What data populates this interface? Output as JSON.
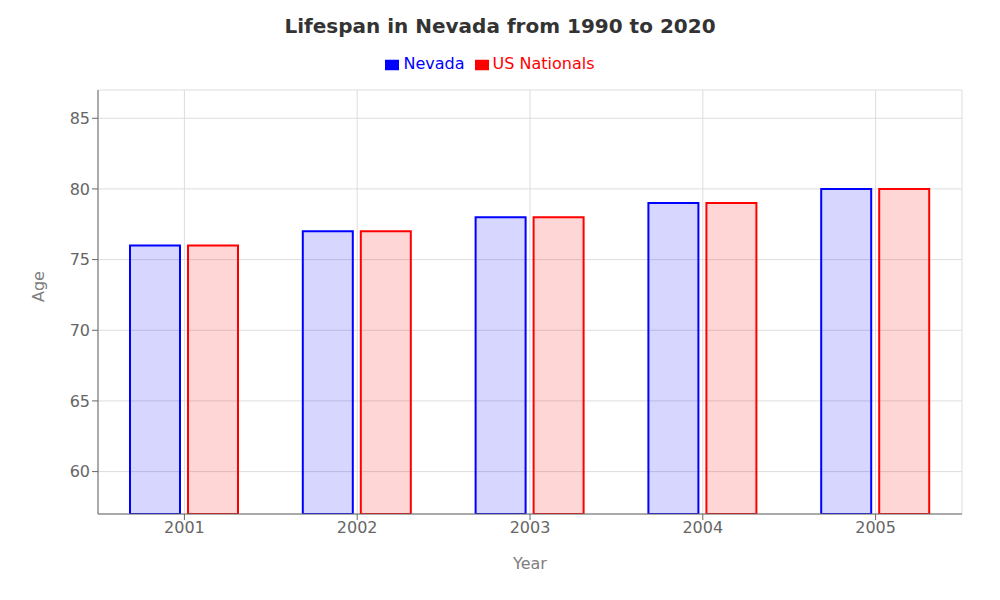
{
  "chart_data": {
    "type": "bar",
    "title": "Lifespan in Nevada from 1990 to 2020",
    "x_label": "Year",
    "y_label": "Age",
    "categories": [
      "2001",
      "2002",
      "2003",
      "2004",
      "2005"
    ],
    "series": [
      {
        "name": "Nevada",
        "color": "#0000ff",
        "values": [
          76,
          77,
          78,
          79,
          80
        ]
      },
      {
        "name": "US Nationals",
        "color": "#ff0000",
        "values": [
          76,
          77,
          78,
          79,
          80
        ]
      }
    ],
    "ylim": [
      57,
      87
    ],
    "yticks": [
      60,
      65,
      70,
      75,
      80,
      85
    ],
    "grid": true,
    "legend": "top"
  }
}
